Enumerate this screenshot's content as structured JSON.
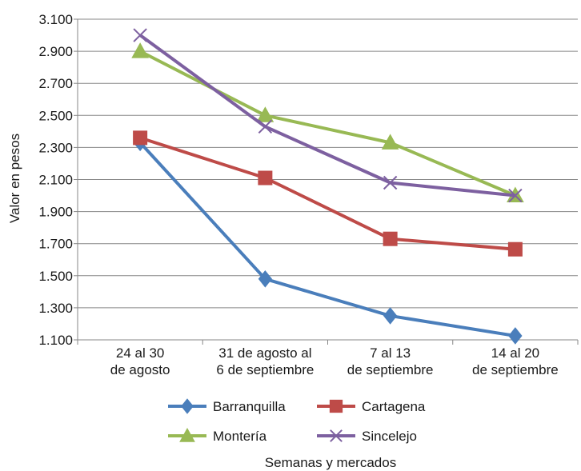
{
  "chart_data": {
    "type": "line",
    "xlabel": "Semanas y mercados",
    "ylabel": "Valor en pesos",
    "ylim": [
      1100,
      3100
    ],
    "yticks": [
      1100,
      1300,
      1500,
      1700,
      1900,
      2100,
      2300,
      2500,
      2700,
      2900,
      3100
    ],
    "ytick_labels": [
      "1.100",
      "1.300",
      "1.500",
      "1.700",
      "1.900",
      "2.100",
      "2.300",
      "2.500",
      "2.700",
      "2.900",
      "3.100"
    ],
    "grid": true,
    "legend_position": "bottom",
    "categories": [
      [
        "24 al 30",
        "de agosto"
      ],
      [
        "31 de agosto al",
        "6 de septiembre"
      ],
      [
        "7 al 13",
        "de septiembre"
      ],
      [
        "14 al 20",
        "de septiembre"
      ]
    ],
    "series": [
      {
        "name": "Barranquilla",
        "color": "#4a7ebb",
        "marker": "diamond",
        "values": [
          2330,
          1480,
          1250,
          1125
        ]
      },
      {
        "name": "Cartagena",
        "color": "#be4b48",
        "marker": "square",
        "values": [
          2360,
          2110,
          1730,
          1665
        ]
      },
      {
        "name": "Montería",
        "color": "#98b954",
        "marker": "triangle",
        "values": [
          2900,
          2500,
          2330,
          2000
        ]
      },
      {
        "name": "Sincelejo",
        "color": "#7d60a0",
        "marker": "x",
        "values": [
          3000,
          2430,
          2080,
          2000
        ]
      }
    ]
  }
}
